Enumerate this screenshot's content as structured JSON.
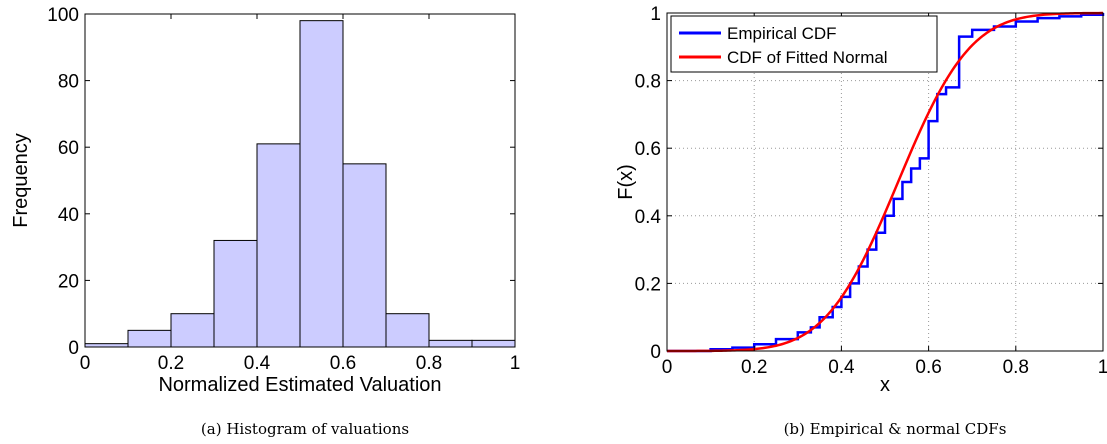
{
  "chart_data": [
    {
      "type": "bar",
      "subtype": "histogram",
      "bin_edges": [
        0,
        0.1,
        0.2,
        0.3,
        0.4,
        0.5,
        0.6,
        0.7,
        0.8,
        0.9,
        1.0
      ],
      "values": [
        1,
        5,
        10,
        32,
        61,
        98,
        55,
        10,
        2,
        2
      ],
      "bar_color": "#ccccff",
      "xlabel": "Normalized Estimated Valuation",
      "ylabel": "Frequency",
      "xlim": [
        0,
        1
      ],
      "ylim": [
        0,
        100
      ],
      "xticks": [
        "0",
        "0.2",
        "0.4",
        "0.6",
        "0.8",
        "1"
      ],
      "yticks": [
        "0",
        "20",
        "40",
        "60",
        "80",
        "100"
      ],
      "grid": false,
      "caption": "(a) Histogram of valuations"
    },
    {
      "type": "line",
      "xlabel": "x",
      "ylabel": "F(x)",
      "xlim": [
        0,
        1
      ],
      "ylim": [
        0,
        1
      ],
      "xticks": [
        "0",
        "0.2",
        "0.4",
        "0.6",
        "0.8",
        "1"
      ],
      "yticks": [
        "0",
        "0.2",
        "0.4",
        "0.6",
        "0.8",
        "1"
      ],
      "grid": true,
      "legend_position": "top-left",
      "series": [
        {
          "name": "Empirical CDF",
          "color": "#0000ff",
          "step": true,
          "x": [
            0,
            0.1,
            0.15,
            0.2,
            0.25,
            0.3,
            0.33,
            0.35,
            0.38,
            0.4,
            0.42,
            0.44,
            0.46,
            0.48,
            0.5,
            0.52,
            0.54,
            0.56,
            0.58,
            0.6,
            0.62,
            0.64,
            0.67,
            0.7,
            0.75,
            0.8,
            0.85,
            0.9,
            0.95,
            1.0
          ],
          "y": [
            0.0,
            0.005,
            0.01,
            0.02,
            0.035,
            0.055,
            0.07,
            0.1,
            0.13,
            0.16,
            0.2,
            0.25,
            0.3,
            0.35,
            0.4,
            0.45,
            0.5,
            0.54,
            0.57,
            0.68,
            0.76,
            0.78,
            0.93,
            0.95,
            0.96,
            0.975,
            0.985,
            0.99,
            0.995,
            1.0
          ]
        },
        {
          "name": "CDF of Fitted Normal",
          "color": "#ff0000",
          "distribution": {
            "mean": 0.53,
            "std": 0.13
          }
        }
      ],
      "caption": "(b) Empirical & normal CDFs"
    }
  ]
}
